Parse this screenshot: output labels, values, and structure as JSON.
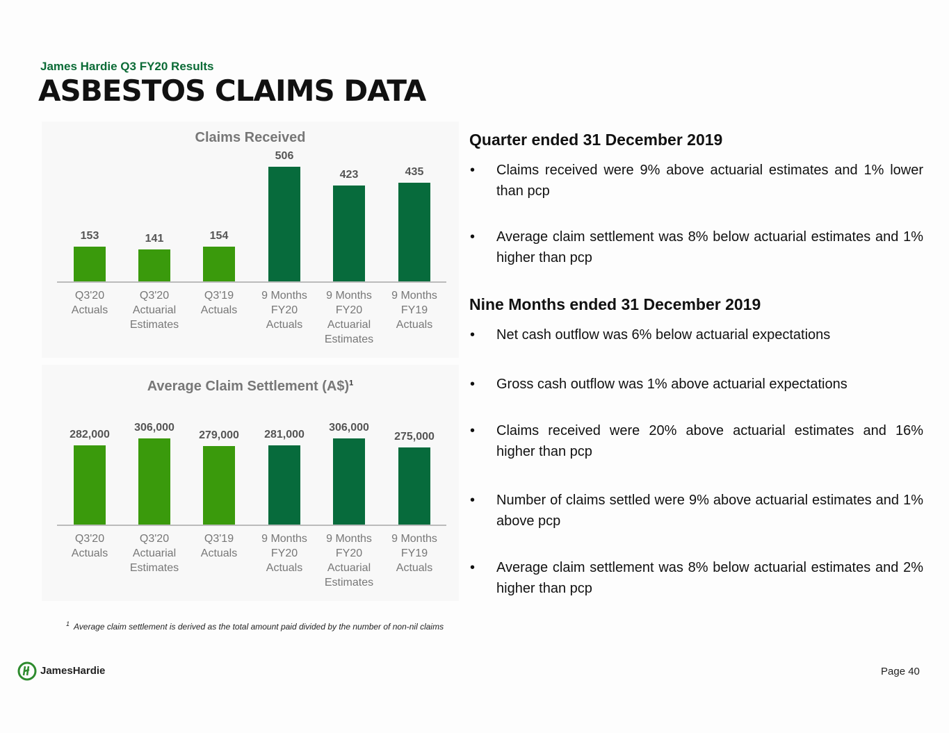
{
  "header": {
    "subtitle": "James Hardie Q3 FY20 Results",
    "title": "ASBESTOS CLAIMS DATA"
  },
  "chart_data": [
    {
      "type": "bar",
      "title": "Claims Received",
      "categories": [
        "Q3'20\nActuals",
        "Q3'20\nActuarial\nEstimates",
        "Q3'19\nActuals",
        "9 Months\nFY20\nActuals",
        "9 Months\nFY20\nActuarial\nEstimates",
        "9 Months\nFY19\nActuals"
      ],
      "values": [
        153,
        141,
        154,
        506,
        423,
        435
      ],
      "colors": [
        "#3a9a0c",
        "#3a9a0c",
        "#3a9a0c",
        "#076b3c",
        "#076b3c",
        "#076b3c"
      ]
    },
    {
      "type": "bar",
      "title": "Average Claim Settlement (A$)",
      "title_note": "1",
      "categories": [
        "Q3'20\nActuals",
        "Q3'20\nActuarial\nEstimates",
        "Q3'19\nActuals",
        "9 Months\nFY20\nActuals",
        "9 Months\nFY20\nActuarial\nEstimates",
        "9 Months\nFY19\nActuals"
      ],
      "values": [
        282000,
        306000,
        279000,
        281000,
        306000,
        275000
      ],
      "value_labels": [
        "282,000",
        "306,000",
        "279,000",
        "281,000",
        "306,000",
        "275,000"
      ],
      "colors": [
        "#3a9a0c",
        "#3a9a0c",
        "#3a9a0c",
        "#076b3c",
        "#076b3c",
        "#076b3c"
      ]
    }
  ],
  "sections": [
    {
      "heading": "Quarter ended 31 December 2019",
      "bullets": [
        "Claims received were 9% above actuarial estimates and 1% lower than pcp",
        "Average claim settlement was 8% below actuarial estimates and 1% higher than pcp"
      ]
    },
    {
      "heading": "Nine Months ended 31 December 2019",
      "bullets": [
        "Net cash outflow was 6% below actuarial expectations",
        "Gross cash outflow was 1% above actuarial expectations",
        "Claims received were 20% above actuarial estimates and 16% higher than pcp",
        "Number of claims settled were 9% above actuarial estimates and 1% above pcp",
        "Average claim settlement was 8% below actuarial estimates and 2% higher than pcp"
      ]
    }
  ],
  "footnote": {
    "marker": "1",
    "text": "Average claim settlement is derived as the total amount paid divided by the number of non-nil claims"
  },
  "footer": {
    "logo": "JamesHardie",
    "page": "Page 40"
  }
}
